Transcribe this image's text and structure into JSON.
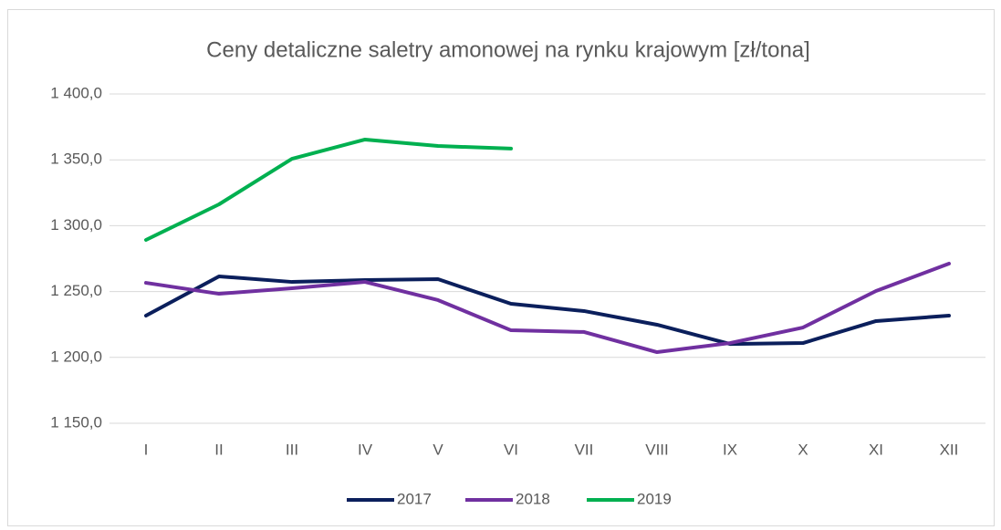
{
  "chart_data": {
    "type": "line",
    "title": "Ceny detaliczne saletry amonowej na rynku krajowym [zł/tona]",
    "categories": [
      "I",
      "II",
      "III",
      "IV",
      "V",
      "VI",
      "VII",
      "VIII",
      "IX",
      "X",
      "XI",
      "XII"
    ],
    "series": [
      {
        "name": "2017",
        "color": "#0b1f5c",
        "values": [
          1231.7,
          1261.5,
          1257.3,
          1258.7,
          1259.4,
          1240.7,
          1235.2,
          1224.8,
          1210.2,
          1210.9,
          1227.6,
          1231.7
        ]
      },
      {
        "name": "2018",
        "color": "#7030a0",
        "values": [
          1256.6,
          1248.3,
          1252.5,
          1257.3,
          1243.5,
          1220.6,
          1219.3,
          1204.0,
          1210.9,
          1222.7,
          1250.4,
          1271.2
        ]
      },
      {
        "name": "2019",
        "color": "#00b050",
        "values": [
          1289.2,
          1316.2,
          1350.8,
          1365.4,
          1360.5,
          1358.5,
          null,
          null,
          null,
          null,
          null,
          null
        ]
      }
    ],
    "ylim": [
      1150,
      1400
    ],
    "yticks": [
      {
        "value": 1150,
        "label": "1 150,0"
      },
      {
        "value": 1200,
        "label": "1 200,0"
      },
      {
        "value": 1250,
        "label": "1 250,0"
      },
      {
        "value": 1300,
        "label": "1 300,0"
      },
      {
        "value": 1350,
        "label": "1 350,0"
      },
      {
        "value": 1400,
        "label": "1 400,0"
      }
    ],
    "grid": true,
    "legend": "bottom"
  }
}
